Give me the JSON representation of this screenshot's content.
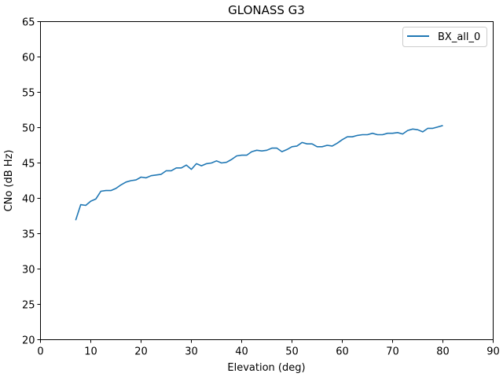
{
  "chart_data": {
    "type": "line",
    "title": "GLONASS G3",
    "xlabel": "Elevation (deg)",
    "ylabel": "CNo (dB Hz)",
    "xlim": [
      0,
      90
    ],
    "ylim": [
      20,
      65
    ],
    "xticks": [
      "0",
      "10",
      "20",
      "30",
      "40",
      "50",
      "60",
      "70",
      "80",
      "90"
    ],
    "yticks": [
      "20",
      "25",
      "30",
      "35",
      "40",
      "45",
      "50",
      "55",
      "60",
      "65"
    ],
    "grid": false,
    "legend_position": "top-right",
    "series": [
      {
        "name": "BX_all_0",
        "color": "#1f77b4",
        "x": [
          7,
          8,
          9,
          10,
          11,
          12,
          13,
          14,
          15,
          16,
          17,
          18,
          19,
          20,
          21,
          22,
          23,
          24,
          25,
          26,
          27,
          28,
          29,
          30,
          31,
          32,
          33,
          34,
          35,
          36,
          37,
          38,
          39,
          40,
          41,
          42,
          43,
          44,
          45,
          46,
          47,
          48,
          49,
          50,
          51,
          52,
          53,
          54,
          55,
          56,
          57,
          58,
          59,
          60,
          61,
          62,
          63,
          64,
          65,
          66,
          67,
          68,
          69,
          70,
          71,
          72,
          73,
          74,
          75,
          76,
          77,
          78,
          79,
          80
        ],
        "y": [
          36.9,
          39.1,
          39.0,
          39.6,
          39.9,
          41.0,
          41.1,
          41.1,
          41.4,
          41.9,
          42.3,
          42.5,
          42.6,
          43.0,
          42.9,
          43.2,
          43.3,
          43.4,
          43.9,
          43.9,
          44.3,
          44.3,
          44.7,
          44.1,
          44.9,
          44.6,
          44.9,
          45.0,
          45.3,
          45.0,
          45.1,
          45.5,
          46.0,
          46.1,
          46.1,
          46.6,
          46.8,
          46.7,
          46.8,
          47.1,
          47.1,
          46.6,
          46.9,
          47.3,
          47.4,
          47.9,
          47.7,
          47.7,
          47.3,
          47.3,
          47.5,
          47.4,
          47.8,
          48.3,
          48.7,
          48.7,
          48.9,
          49.0,
          49.0,
          49.2,
          49.0,
          49.0,
          49.2,
          49.2,
          49.3,
          49.1,
          49.6,
          49.8,
          49.7,
          49.4,
          49.9,
          49.9,
          50.1,
          50.3
        ]
      }
    ]
  }
}
